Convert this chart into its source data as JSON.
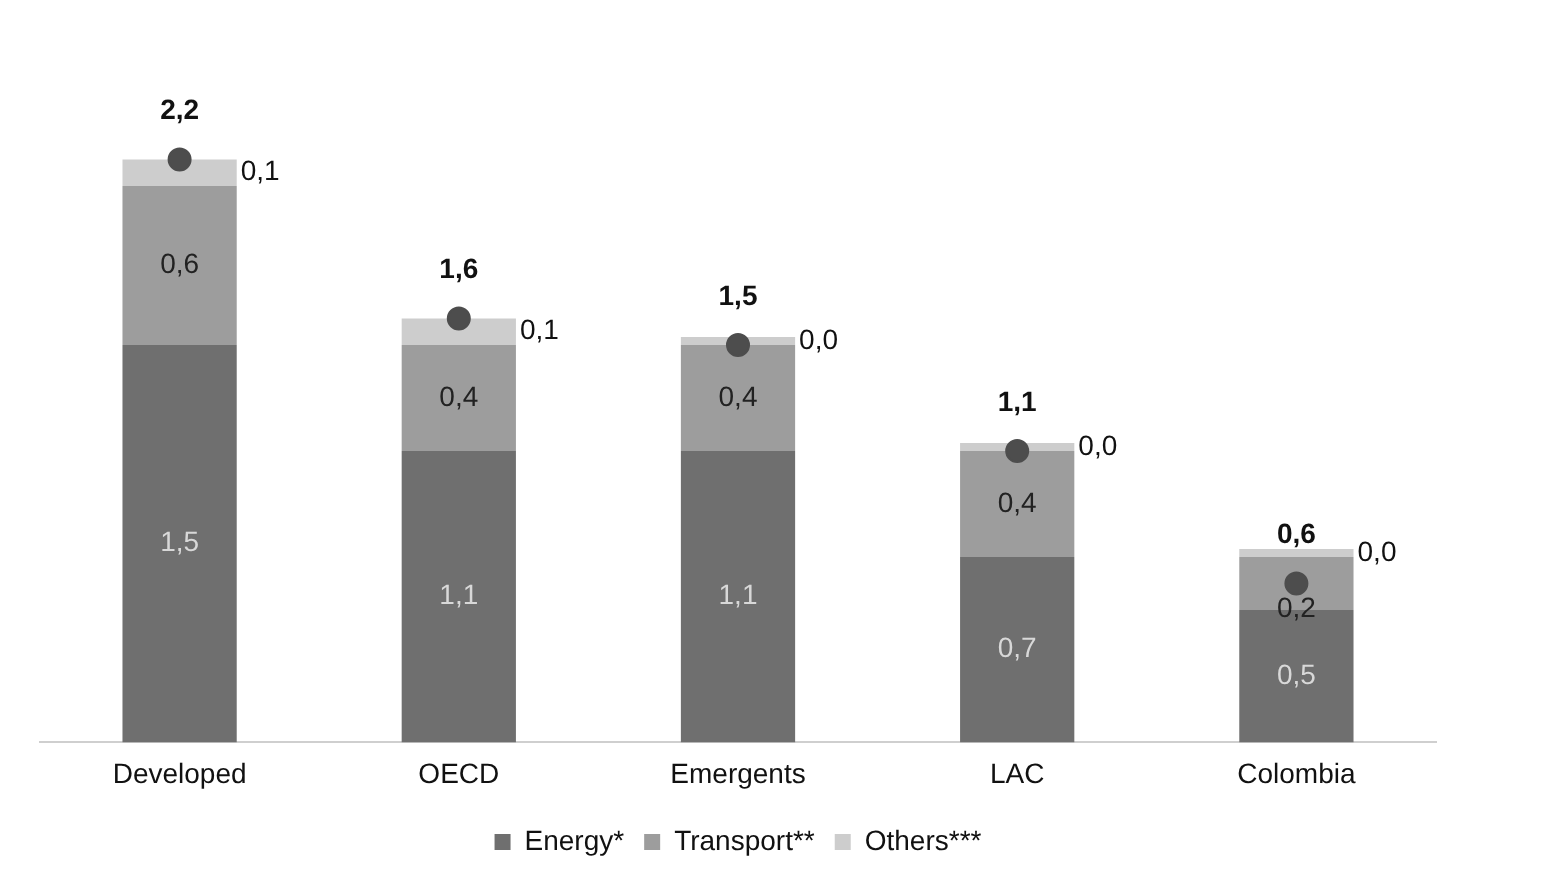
{
  "chart_data": {
    "type": "bar",
    "stacked": true,
    "categories": [
      "Developed",
      "OECD",
      "Emergents",
      "LAC",
      "Colombia"
    ],
    "legend": "bottom",
    "grid": false,
    "tick_labels": "x",
    "series": [
      {
        "name": "Energy*",
        "color": "#6f6f6f",
        "values": [
          1.5,
          1.1,
          1.1,
          0.7,
          0.5
        ],
        "value_labels": [
          "1,5",
          "1,1",
          "1,1",
          "0,7",
          "0,5"
        ]
      },
      {
        "name": "Transport**",
        "color": "#9d9d9d",
        "values": [
          0.6,
          0.4,
          0.4,
          0.4,
          0.2
        ],
        "value_labels": [
          "0,6",
          "0,4",
          "0,4",
          "0,4",
          "0,2"
        ]
      },
      {
        "name": "Others***",
        "color": "#cdcdcd",
        "values": [
          0.1,
          0.1,
          0.03,
          0.03,
          0.03
        ],
        "value_labels": [
          "0,1",
          "0,1",
          "0,0",
          "0,0",
          "0,0"
        ]
      },
      {
        "type": "scatter",
        "color": "#4d4d4d",
        "x": [
          "Developed",
          "OECD",
          "Emergents",
          "LAC",
          "Colombia"
        ],
        "values": [
          2.2,
          1.6,
          1.5,
          1.1,
          0.6
        ],
        "value_labels": [
          "2,2",
          "1,6",
          "1,5",
          "1,1",
          "0,6"
        ]
      }
    ]
  }
}
